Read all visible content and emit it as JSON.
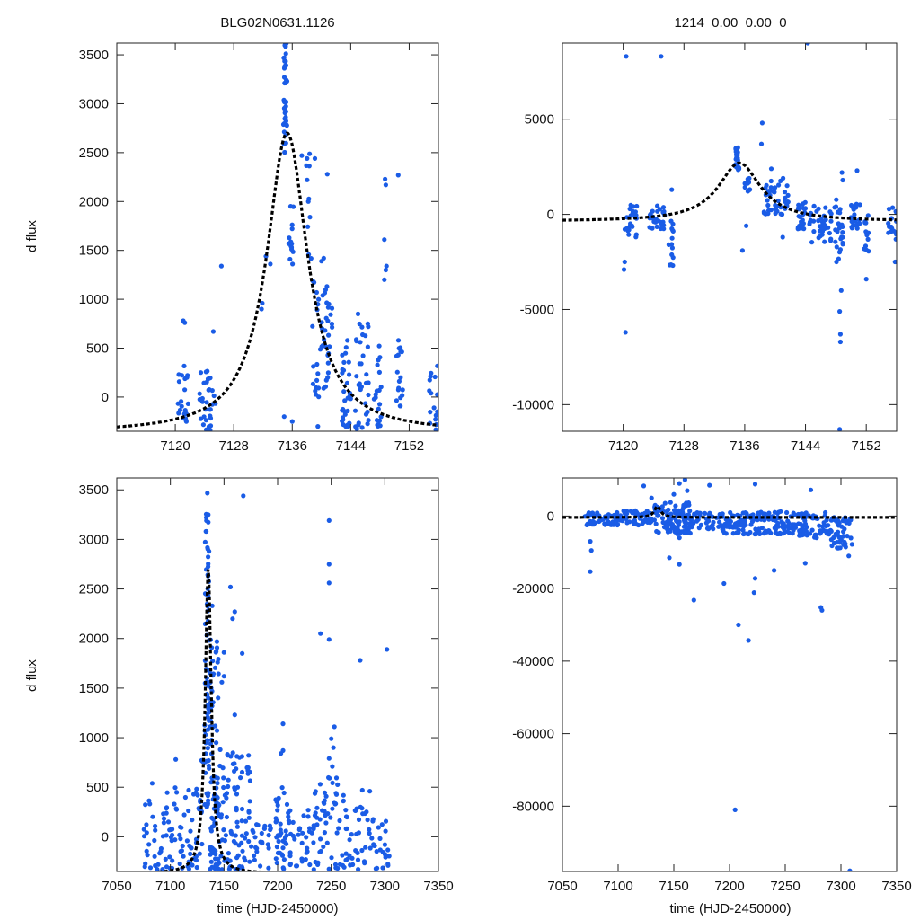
{
  "colors": {
    "points": "#1a5ce6",
    "model": "#000000",
    "frame": "#222222"
  },
  "chart_data": [
    {
      "id": "top-left",
      "type": "scatter",
      "title": "BLG02N0631.1126",
      "xlabel": "",
      "ylabel": "d flux",
      "xlim": [
        7112,
        7156
      ],
      "ylim": [
        -350,
        3620
      ],
      "xticks": [
        7120,
        7128,
        7136,
        7144,
        7152
      ],
      "yticks": [
        0,
        500,
        1000,
        1500,
        2000,
        2500,
        3000,
        3500
      ],
      "model": {
        "t0": 7135.3,
        "amplitude": 3070,
        "width": 3.4,
        "baseline": -370
      },
      "clusters": [
        {
          "x": [
            7120.2,
            7121.8
          ],
          "y": [
            -330,
            320
          ],
          "n": 22
        },
        {
          "x": [
            7123.3,
            7125.5
          ],
          "y": [
            -340,
            300
          ],
          "n": 32
        },
        {
          "x": [
            7134.8,
            7135.3
          ],
          "y": [
            2500,
            3620
          ],
          "n": 40
        },
        {
          "x": [
            7135.5,
            7136.2
          ],
          "y": [
            1350,
            2000
          ],
          "n": 14
        },
        {
          "x": [
            7137.8,
            7138.6
          ],
          "y": [
            1400,
            2500
          ],
          "n": 10
        },
        {
          "x": [
            7138.7,
            7141.5
          ],
          "y": [
            0,
            1200
          ],
          "n": 48
        },
        {
          "x": [
            7142.8,
            7144.0
          ],
          "y": [
            -330,
            600
          ],
          "n": 30
        },
        {
          "x": [
            7144.5,
            7146.5
          ],
          "y": [
            -330,
            800
          ],
          "n": 34
        },
        {
          "x": [
            7147.2,
            7148.2
          ],
          "y": [
            -300,
            600
          ],
          "n": 20
        },
        {
          "x": [
            7150.2,
            7151.2
          ],
          "y": [
            -100,
            600
          ],
          "n": 18
        },
        {
          "x": [
            7154.6,
            7156.0
          ],
          "y": [
            -340,
            320
          ],
          "n": 16
        }
      ],
      "points": [
        [
          7121.1,
          780
        ],
        [
          7121.3,
          760
        ],
        [
          7126.3,
          1340
        ],
        [
          7125.2,
          670
        ],
        [
          7132.4,
          1440
        ],
        [
          7131.9,
          960
        ],
        [
          7131.8,
          900
        ],
        [
          7133.0,
          1360
        ],
        [
          7134.9,
          -200
        ],
        [
          7136.0,
          -250
        ],
        [
          7137.3,
          2470
        ],
        [
          7138.2,
          2000
        ],
        [
          7140.8,
          2280
        ],
        [
          7140.0,
          1390
        ],
        [
          7140.3,
          1420
        ],
        [
          7139.1,
          2440
        ],
        [
          7148.7,
          2230
        ],
        [
          7148.8,
          2170
        ],
        [
          7148.6,
          1610
        ],
        [
          7148.9,
          1340
        ],
        [
          7148.8,
          1300
        ],
        [
          7148.6,
          1200
        ],
        [
          7150.5,
          2270
        ],
        [
          7139.5,
          -300
        ],
        [
          7145.0,
          850
        ],
        [
          7146.4,
          720
        ]
      ]
    },
    {
      "id": "top-right",
      "type": "scatter",
      "title": "1214  0.00  0.00  0",
      "xlabel": "",
      "ylabel": "",
      "xlim": [
        7112,
        7156
      ],
      "ylim": [
        -11400,
        9000
      ],
      "xticks": [
        7120,
        7128,
        7136,
        7144,
        7152
      ],
      "yticks": [
        -10000,
        -5000,
        0,
        5000
      ],
      "model": {
        "t0": 7135.3,
        "amplitude": 3070,
        "width": 3.4,
        "baseline": -370
      },
      "clusters": [
        {
          "x": [
            7120.2,
            7121.8
          ],
          "y": [
            -1200,
            500
          ],
          "n": 24
        },
        {
          "x": [
            7123.3,
            7125.5
          ],
          "y": [
            -800,
            500
          ],
          "n": 30
        },
        {
          "x": [
            7126.0,
            7126.6
          ],
          "y": [
            -2700,
            0
          ],
          "n": 14
        },
        {
          "x": [
            7134.8,
            7135.3
          ],
          "y": [
            2300,
            3600
          ],
          "n": 26
        },
        {
          "x": [
            7136.0,
            7136.8
          ],
          "y": [
            1200,
            2000
          ],
          "n": 10
        },
        {
          "x": [
            7138.5,
            7141.8
          ],
          "y": [
            0,
            2000
          ],
          "n": 44
        },
        {
          "x": [
            7143.0,
            7144.0
          ],
          "y": [
            -800,
            700
          ],
          "n": 24
        },
        {
          "x": [
            7144.5,
            7147.5
          ],
          "y": [
            -1500,
            500
          ],
          "n": 40
        },
        {
          "x": [
            7147.8,
            7149.0
          ],
          "y": [
            -2500,
            1000
          ],
          "n": 24
        },
        {
          "x": [
            7150.0,
            7151.2
          ],
          "y": [
            -800,
            600
          ],
          "n": 20
        },
        {
          "x": [
            7151.6,
            7152.4
          ],
          "y": [
            -2000,
            300
          ],
          "n": 12
        },
        {
          "x": [
            7154.8,
            7156.0
          ],
          "y": [
            -1400,
            600
          ],
          "n": 16
        }
      ],
      "points": [
        [
          7120.4,
          8300
        ],
        [
          7125.0,
          8300
        ],
        [
          7144.3,
          9000
        ],
        [
          7120.3,
          -6200
        ],
        [
          7120.2,
          -2500
        ],
        [
          7120.1,
          -2900
        ],
        [
          7126.4,
          1300
        ],
        [
          7138.3,
          4800
        ],
        [
          7138.2,
          3700
        ],
        [
          7135.7,
          -1900
        ],
        [
          7136.2,
          -600
        ],
        [
          7141.0,
          -1200
        ],
        [
          7148.5,
          -11300
        ],
        [
          7148.6,
          -6700
        ],
        [
          7148.6,
          -6300
        ],
        [
          7148.5,
          -5100
        ],
        [
          7148.7,
          -4000
        ],
        [
          7148.8,
          2200
        ],
        [
          7148.9,
          1800
        ],
        [
          7150.8,
          2300
        ],
        [
          7152.0,
          -3400
        ],
        [
          7155.8,
          -2500
        ],
        [
          7139.5,
          2400
        ],
        [
          7141.7,
          1000
        ]
      ]
    },
    {
      "id": "bottom-left",
      "type": "scatter",
      "title": "",
      "xlabel": "time (HJD-2450000)",
      "ylabel": "d flux",
      "xlim": [
        7050,
        7350
      ],
      "ylim": [
        -350,
        3620
      ],
      "xticks": [
        7050,
        7100,
        7150,
        7200,
        7250,
        7300,
        7350
      ],
      "yticks": [
        0,
        500,
        1000,
        1500,
        2000,
        2500,
        3000,
        3500
      ],
      "model": {
        "t0": 7135.3,
        "amplitude": 3070,
        "width": 3.4,
        "baseline": -370
      },
      "clusters": [
        {
          "x": [
            7075,
            7095
          ],
          "y": [
            -330,
            400
          ],
          "n": 30
        },
        {
          "x": [
            7095,
            7130
          ],
          "y": [
            -330,
            500
          ],
          "n": 70
        },
        {
          "x": [
            7132,
            7136
          ],
          "y": [
            300,
            3620
          ],
          "n": 70
        },
        {
          "x": [
            7136,
            7145
          ],
          "y": [
            -330,
            2000
          ],
          "n": 80
        },
        {
          "x": [
            7145,
            7175
          ],
          "y": [
            -330,
            900
          ],
          "n": 90
        },
        {
          "x": [
            7175,
            7195
          ],
          "y": [
            -330,
            200
          ],
          "n": 25
        },
        {
          "x": [
            7198,
            7212
          ],
          "y": [
            -330,
            500
          ],
          "n": 45
        },
        {
          "x": [
            7212,
            7232
          ],
          "y": [
            -330,
            300
          ],
          "n": 25
        },
        {
          "x": [
            7232,
            7262
          ],
          "y": [
            -330,
            600
          ],
          "n": 60
        },
        {
          "x": [
            7262,
            7285
          ],
          "y": [
            -330,
            300
          ],
          "n": 35
        },
        {
          "x": [
            7285,
            7305
          ],
          "y": [
            -330,
            200
          ],
          "n": 28
        }
      ],
      "points": [
        [
          7168,
          3440
        ],
        [
          7248,
          3190
        ],
        [
          7248,
          2750
        ],
        [
          7248,
          2560
        ],
        [
          7240,
          2050
        ],
        [
          7248,
          1990
        ],
        [
          7277,
          1780
        ],
        [
          7302,
          1890
        ],
        [
          7156,
          2520
        ],
        [
          7160,
          2270
        ],
        [
          7158,
          2200
        ],
        [
          7150,
          1860
        ],
        [
          7148,
          1560
        ],
        [
          7205,
          1140
        ],
        [
          7205,
          870
        ],
        [
          7203,
          840
        ],
        [
          7253,
          1110
        ],
        [
          7250,
          990
        ],
        [
          7252,
          900
        ],
        [
          7248,
          790
        ],
        [
          7251,
          710
        ],
        [
          7083,
          540
        ],
        [
          7105,
          780
        ],
        [
          7129,
          770
        ],
        [
          7130,
          760
        ],
        [
          7144,
          1760
        ],
        [
          7160,
          1230
        ],
        [
          7279,
          470
        ],
        [
          7286,
          460
        ],
        [
          7167,
          1850
        ],
        [
          7139,
          2330
        ],
        [
          7150,
          1620
        ]
      ]
    },
    {
      "id": "bottom-right",
      "type": "scatter",
      "title": "",
      "xlabel": "time (HJD-2450000)",
      "ylabel": "",
      "xlim": [
        7050,
        7350
      ],
      "ylim": [
        -98000,
        10500
      ],
      "xticks": [
        7050,
        7100,
        7150,
        7200,
        7250,
        7300,
        7350
      ],
      "yticks": [
        -80000,
        -60000,
        -40000,
        -20000,
        0
      ],
      "model": {
        "t0": 7135.3,
        "amplitude": 3070,
        "width": 3.4,
        "baseline": -370
      },
      "clusters": [
        {
          "x": [
            7070,
            7100
          ],
          "y": [
            -2500,
            1000
          ],
          "n": 50
        },
        {
          "x": [
            7100,
            7130
          ],
          "y": [
            -2500,
            1500
          ],
          "n": 50
        },
        {
          "x": [
            7132,
            7165
          ],
          "y": [
            -5000,
            4000
          ],
          "n": 110
        },
        {
          "x": [
            7165,
            7195
          ],
          "y": [
            -4000,
            1000
          ],
          "n": 50
        },
        {
          "x": [
            7195,
            7225
          ],
          "y": [
            -5000,
            1000
          ],
          "n": 70
        },
        {
          "x": [
            7225,
            7260
          ],
          "y": [
            -5000,
            1500
          ],
          "n": 80
        },
        {
          "x": [
            7260,
            7290
          ],
          "y": [
            -6000,
            1000
          ],
          "n": 60
        },
        {
          "x": [
            7290,
            7310
          ],
          "y": [
            -9000,
            0
          ],
          "n": 50
        }
      ],
      "points": [
        [
          7075,
          -15300
        ],
        [
          7076,
          -9500
        ],
        [
          7075,
          -7000
        ],
        [
          7123,
          8300
        ],
        [
          7155,
          9000
        ],
        [
          7160,
          10000
        ],
        [
          7162,
          7000
        ],
        [
          7182,
          8500
        ],
        [
          7223,
          8800
        ],
        [
          7273,
          7200
        ],
        [
          7168,
          -23200
        ],
        [
          7195,
          -18600
        ],
        [
          7208,
          -30000
        ],
        [
          7217,
          -34300
        ],
        [
          7223,
          -17200
        ],
        [
          7222,
          -21100
        ],
        [
          7155,
          -13300
        ],
        [
          7146,
          -11500
        ],
        [
          7268,
          -13000
        ],
        [
          7282,
          -25200
        ],
        [
          7283,
          -26000
        ],
        [
          7205,
          -81000
        ],
        [
          7308,
          -97800
        ],
        [
          7307,
          -11000
        ],
        [
          7240,
          -15000
        ],
        [
          7155,
          -6000
        ],
        [
          7150,
          6000
        ],
        [
          7130,
          5000
        ]
      ]
    }
  ]
}
